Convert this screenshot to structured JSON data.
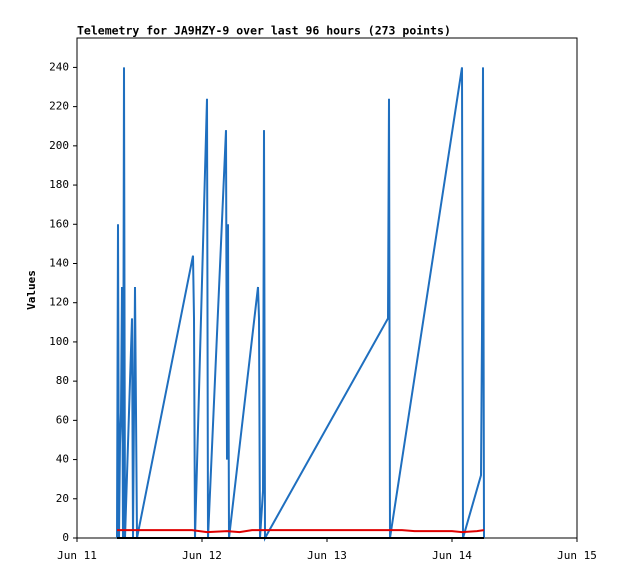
{
  "chart_data": {
    "type": "line",
    "title": "Telemetry for JA9HZY-9 over last 96 hours (273 points)",
    "y_label": "Values",
    "xlim": [
      11,
      15
    ],
    "xticks": [
      {
        "value": 11,
        "label": "Jun 11"
      },
      {
        "value": 12,
        "label": "Jun 12"
      },
      {
        "value": 13,
        "label": "Jun 13"
      },
      {
        "value": 14,
        "label": "Jun 14"
      },
      {
        "value": 15,
        "label": "Jun 15"
      }
    ],
    "ylim": [
      0,
      255
    ],
    "yticks": [
      0,
      20,
      40,
      60,
      80,
      100,
      120,
      140,
      160,
      180,
      200,
      220,
      240
    ],
    "series": [
      {
        "color": "#1f6fbf",
        "x": [
          11.32,
          11.328,
          11.336,
          11.344,
          11.352,
          11.36,
          11.368,
          11.376,
          11.384,
          11.44,
          11.448,
          11.464,
          11.48,
          11.928,
          11.936,
          11.944,
          12.04,
          12.048,
          12.192,
          12.2,
          12.208,
          12.216,
          12.448,
          12.456,
          12.464,
          12.488,
          12.496,
          12.504,
          13.488,
          13.496,
          13.504,
          14.08,
          14.088,
          14.232,
          14.24,
          14.248,
          14.256
        ],
        "values": [
          0,
          160,
          0,
          48,
          64,
          128,
          0,
          240,
          0,
          112,
          0,
          128,
          0,
          144,
          112,
          0,
          224,
          0,
          208,
          40,
          160,
          0,
          128,
          112,
          0,
          24,
          208,
          0,
          112,
          224,
          0,
          240,
          0,
          32,
          104,
          240,
          0
        ]
      },
      {
        "color": "#e00000",
        "x": [
          11.32,
          11.92,
          12.04,
          12.2,
          12.3,
          12.4,
          13.6,
          13.7,
          14.0,
          14.08,
          14.2,
          14.256
        ],
        "values": [
          4,
          4,
          3,
          3.5,
          3,
          4,
          4,
          3.5,
          3.5,
          3,
          3.5,
          4
        ]
      },
      {
        "color": "#000000",
        "x": [
          11.32,
          14.256
        ],
        "values": [
          0,
          0
        ]
      }
    ]
  }
}
